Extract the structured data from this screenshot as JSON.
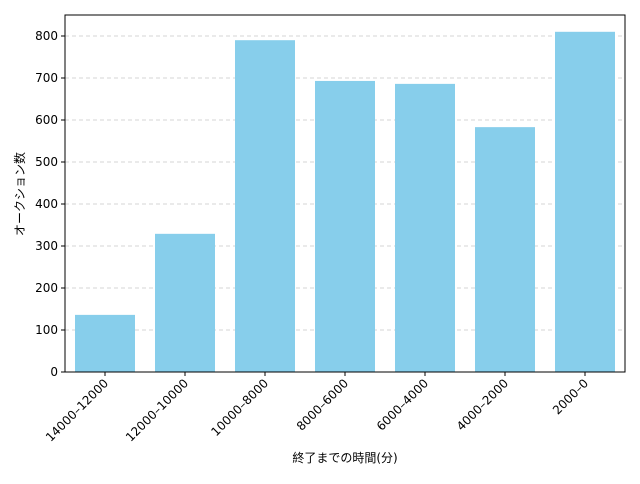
{
  "chart_data": {
    "type": "bar",
    "x_label": "終了までの時間(分)",
    "y_label": "オークション数",
    "categories": [
      "14000–12000",
      "12000–10000",
      "10000–8000",
      "8000–6000",
      "6000–4000",
      "4000–2000",
      "2000–0"
    ],
    "values": [
      136,
      329,
      790,
      693,
      686,
      583,
      810
    ],
    "color": "#87ceeb",
    "ylim": [
      0,
      850
    ],
    "yticks": [
      0,
      100,
      200,
      300,
      400,
      500,
      600,
      700,
      800
    ],
    "grid": true
  }
}
